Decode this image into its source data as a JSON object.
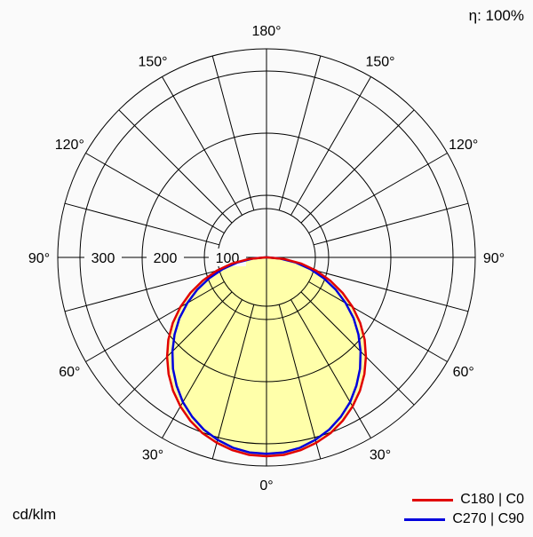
{
  "eta_label": "η: 100%",
  "unit_label": "cd/klm",
  "legend": [
    {
      "label": "C180 | C0",
      "color": "#e10000"
    },
    {
      "label": "C270 | C90",
      "color": "#0000dd"
    }
  ],
  "chart_data": {
    "type": "line",
    "projection": "polar",
    "description": "Luminous intensity distribution curve of a luminaire (polar photometric diagram)",
    "units": "cd/klm",
    "efficiency": "100%",
    "angle_ticks_deg": [
      0,
      30,
      60,
      90,
      120,
      150,
      180
    ],
    "angle_tick_labels": [
      "0°",
      "30°",
      "60°",
      "90°",
      "120°",
      "150°",
      "180°"
    ],
    "radial_ticks": [
      100,
      200,
      300
    ],
    "radial_tick_labels": [
      "100",
      "200",
      "300"
    ],
    "spoke_step_deg": 15,
    "rmax": 335,
    "fill_color": "#ffffaa",
    "grid_color": "#000000",
    "series": [
      {
        "name": "C180 | C0",
        "color": "#e10000",
        "symmetric": true,
        "gamma_deg": [
          0,
          5,
          10,
          15,
          20,
          25,
          30,
          35,
          40,
          45,
          50,
          55,
          60,
          65,
          70,
          75,
          80,
          85,
          90
        ],
        "values": [
          320,
          319,
          315,
          309,
          301,
          290,
          277,
          262,
          245,
          226,
          206,
          184,
          160,
          135,
          109,
          83,
          56,
          28,
          2
        ]
      },
      {
        "name": "C270 | C90",
        "color": "#0000dd",
        "symmetric": true,
        "gamma_deg": [
          0,
          5,
          10,
          15,
          20,
          25,
          30,
          35,
          40,
          45,
          50,
          55,
          60,
          65,
          70,
          75,
          80,
          85,
          90
        ],
        "values": [
          316,
          315,
          311,
          304,
          295,
          283,
          269,
          252,
          234,
          214,
          193,
          171,
          147,
          123,
          98,
          73,
          48,
          22,
          2
        ]
      }
    ]
  }
}
